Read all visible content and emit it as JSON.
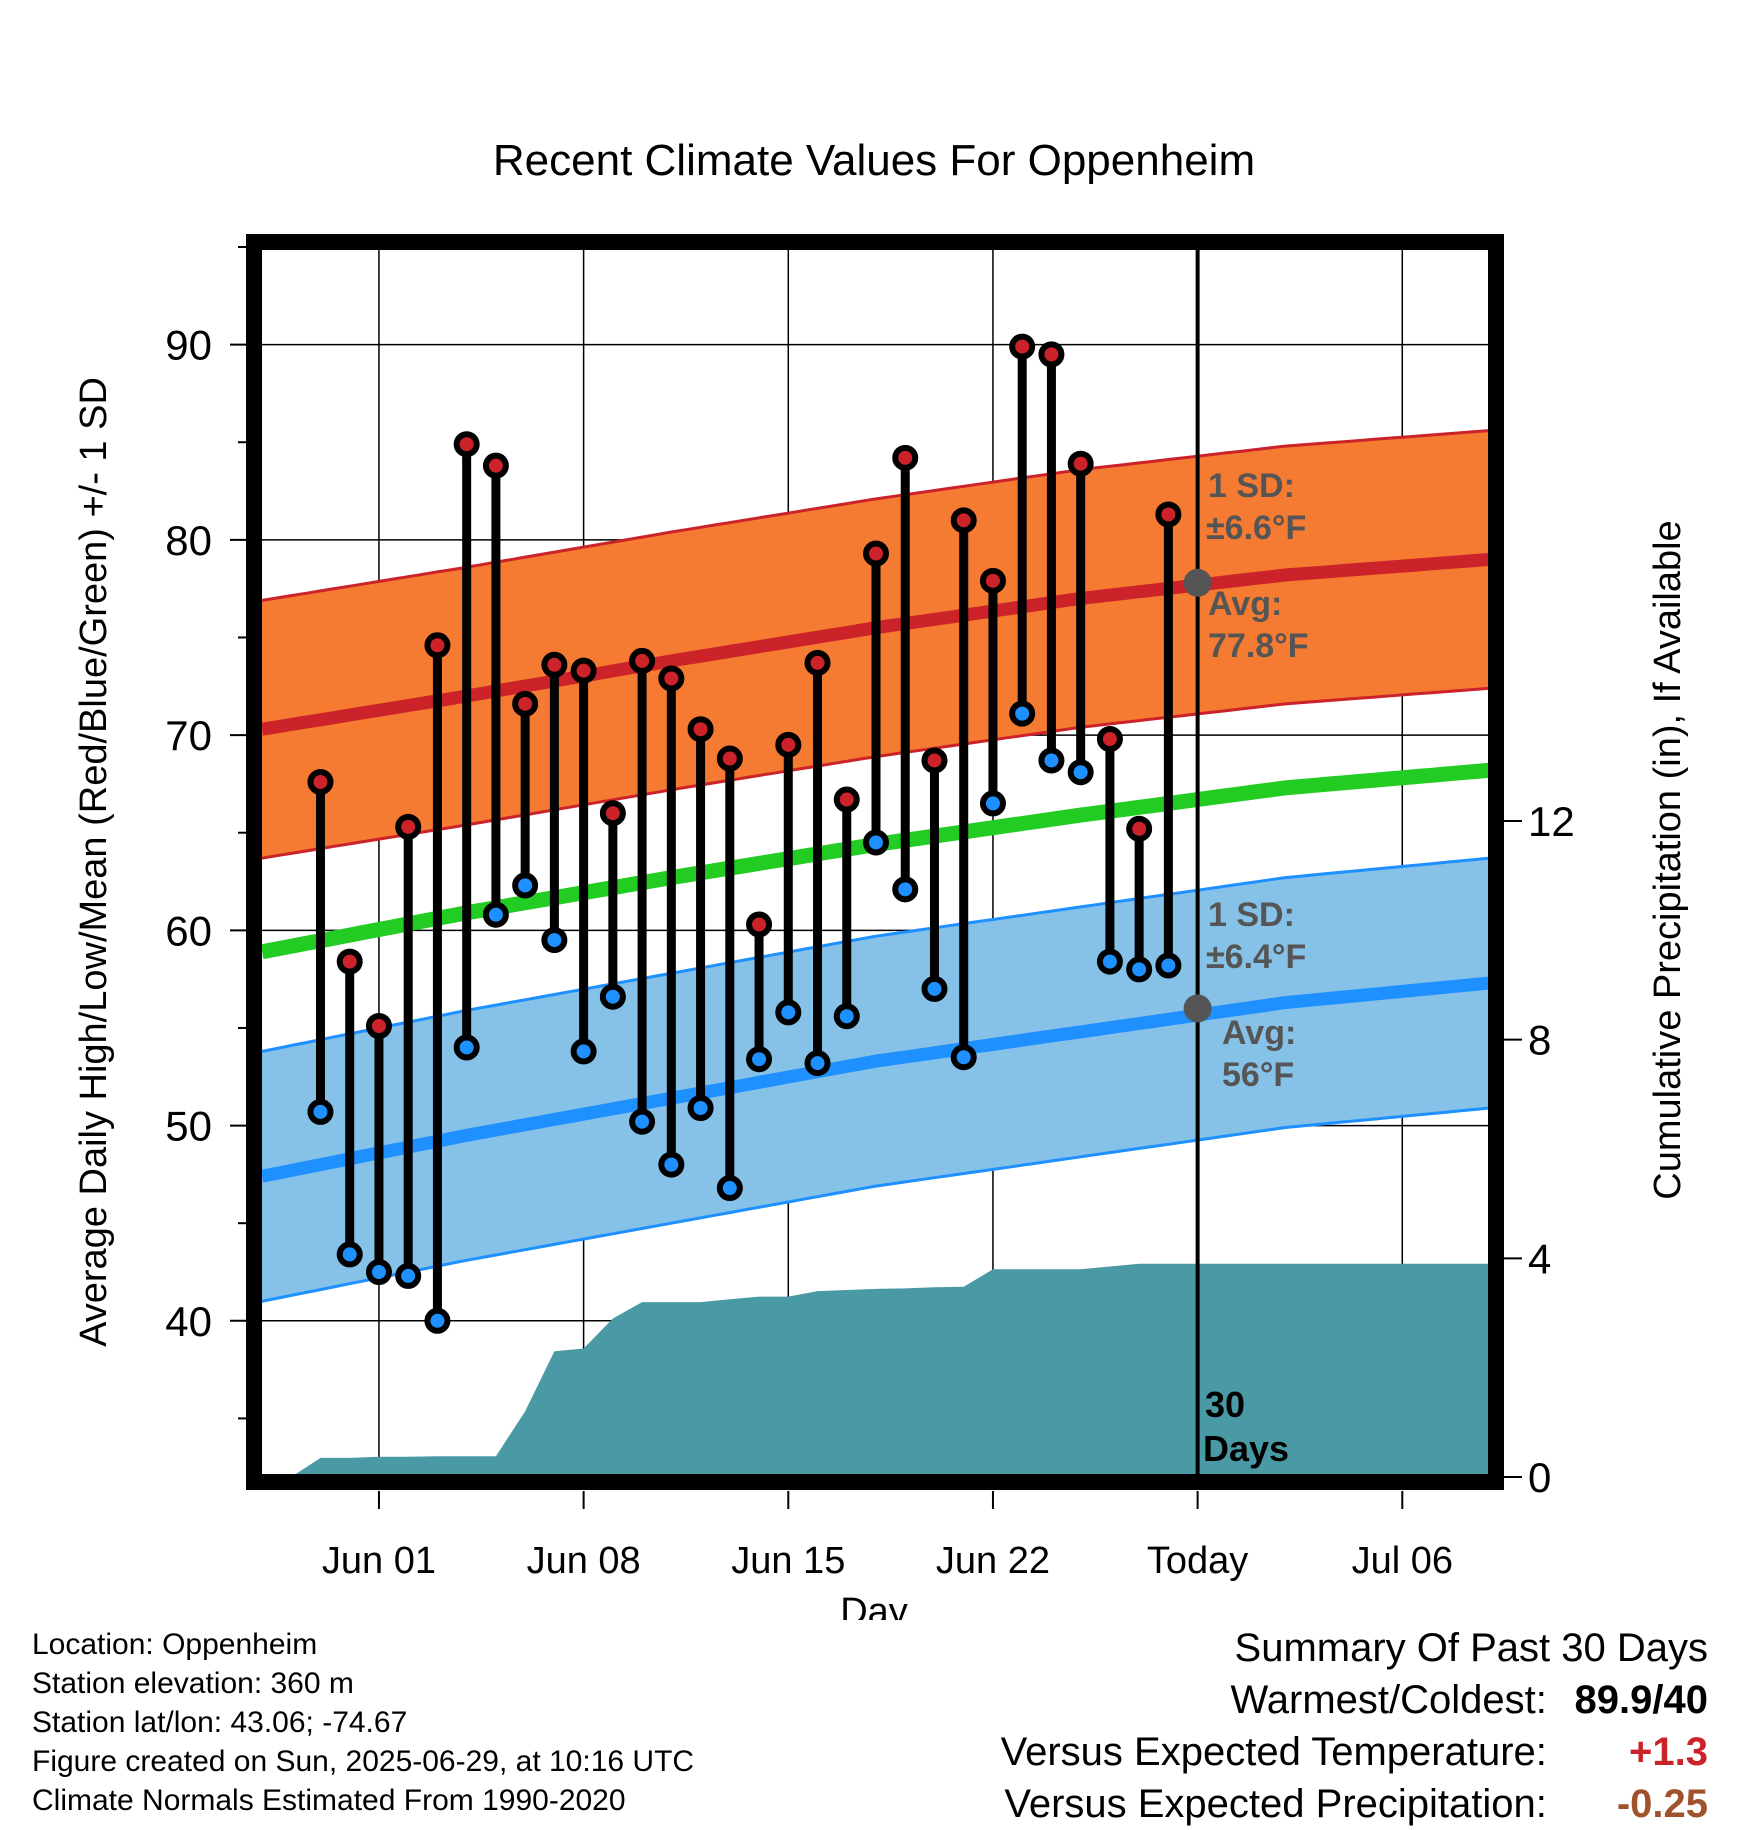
{
  "chart_data": {
    "type": "line",
    "title": "Recent Climate Values For Oppenheim",
    "xlabel": "Day",
    "ylabel": "Average Daily High/Low/Mean (Red/Blue/Green) +/- 1 SD",
    "y2label": "Cumulative Precipitation (in), If Available",
    "xlim": [
      "2025-05-28",
      "2025-07-09"
    ],
    "ylim": [
      32,
      95
    ],
    "y2lim": [
      0,
      22.5
    ],
    "x_ticks": [
      {
        "date": "2025-06-01",
        "label": "Jun 01"
      },
      {
        "date": "2025-06-08",
        "label": "Jun 08"
      },
      {
        "date": "2025-06-15",
        "label": "Jun 15"
      },
      {
        "date": "2025-06-22",
        "label": "Jun 22"
      },
      {
        "date": "2025-06-29",
        "label": "Today"
      },
      {
        "date": "2025-07-06",
        "label": "Jul 06"
      }
    ],
    "y_ticks": [
      40,
      50,
      60,
      70,
      80,
      90
    ],
    "y2_ticks": [
      0,
      4,
      8,
      12
    ],
    "grid": true,
    "today": "2025-06-29",
    "today_label": "30 Days",
    "normals": {
      "dates": [
        "2025-05-28",
        "2025-06-04",
        "2025-06-11",
        "2025-06-18",
        "2025-06-25",
        "2025-07-02",
        "2025-07-09"
      ],
      "avg_high": [
        70.3,
        72.0,
        73.8,
        75.5,
        77.0,
        78.2,
        79.0
      ],
      "high_sd": 6.6,
      "avg_mean": [
        58.9,
        60.9,
        62.7,
        64.4,
        65.9,
        67.3,
        68.2
      ],
      "avg_low": [
        47.4,
        49.5,
        51.4,
        53.3,
        54.8,
        56.3,
        57.3
      ],
      "low_sd": 6.4
    },
    "observed": {
      "dates": [
        "2025-05-30",
        "2025-05-31",
        "2025-06-01",
        "2025-06-02",
        "2025-06-03",
        "2025-06-04",
        "2025-06-05",
        "2025-06-06",
        "2025-06-07",
        "2025-06-08",
        "2025-06-09",
        "2025-06-10",
        "2025-06-11",
        "2025-06-12",
        "2025-06-13",
        "2025-06-14",
        "2025-06-15",
        "2025-06-16",
        "2025-06-17",
        "2025-06-18",
        "2025-06-19",
        "2025-06-20",
        "2025-06-21",
        "2025-06-22",
        "2025-06-23",
        "2025-06-24",
        "2025-06-25",
        "2025-06-26",
        "2025-06-27",
        "2025-06-28"
      ],
      "high": [
        67.6,
        58.4,
        55.1,
        65.3,
        74.6,
        84.9,
        83.8,
        71.6,
        73.6,
        73.3,
        66.0,
        73.8,
        72.9,
        70.3,
        68.8,
        60.3,
        69.5,
        73.7,
        66.7,
        79.3,
        84.2,
        68.7,
        81.0,
        77.9,
        89.9,
        89.5,
        83.9,
        69.8,
        65.2,
        81.3
      ],
      "low": [
        50.7,
        43.4,
        42.5,
        42.3,
        40.0,
        54.0,
        60.8,
        62.3,
        59.5,
        53.8,
        56.6,
        50.2,
        48.0,
        50.9,
        46.8,
        53.4,
        55.8,
        53.2,
        55.6,
        64.5,
        62.1,
        57.0,
        53.5,
        66.5,
        71.1,
        68.7,
        68.1,
        58.4,
        58.0,
        58.2
      ]
    },
    "precip": {
      "dates": [
        "2025-05-29",
        "2025-05-30",
        "2025-05-31",
        "2025-06-01",
        "2025-06-02",
        "2025-06-03",
        "2025-06-04",
        "2025-06-05",
        "2025-06-06",
        "2025-06-07",
        "2025-06-08",
        "2025-06-09",
        "2025-06-10",
        "2025-06-11",
        "2025-06-12",
        "2025-06-13",
        "2025-06-14",
        "2025-06-15",
        "2025-06-16",
        "2025-06-17",
        "2025-06-18",
        "2025-06-19",
        "2025-06-20",
        "2025-06-21",
        "2025-06-22",
        "2025-06-23",
        "2025-06-24",
        "2025-06-25",
        "2025-06-26",
        "2025-06-27",
        "2025-06-28",
        "2025-06-29",
        "2025-07-09"
      ],
      "cumulative": [
        0.0,
        0.35,
        0.35,
        0.37,
        0.37,
        0.38,
        0.38,
        0.38,
        1.2,
        2.3,
        2.35,
        2.9,
        3.2,
        3.2,
        3.2,
        3.25,
        3.3,
        3.3,
        3.4,
        3.42,
        3.44,
        3.45,
        3.47,
        3.48,
        3.8,
        3.8,
        3.8,
        3.8,
        3.85,
        3.9,
        3.9,
        3.9,
        3.9
      ]
    },
    "annotations": {
      "high_sd_label": "1 SD:",
      "high_sd_value": "±6.6°F",
      "high_avg_label": "Avg:",
      "high_avg_value": "77.8°F",
      "today_high_avg": 77.8,
      "low_sd_label": "1 SD:",
      "low_sd_value": "±6.4°F",
      "low_avg_label": "Avg:",
      "low_avg_value": "56°F",
      "today_low_avg": 56.0
    },
    "colors": {
      "high_band": "#f47b31",
      "high_line": "#cc2229",
      "mean_line": "#22cc22",
      "low_band": "#86c1e8",
      "low_line": "#1e90ff",
      "precip": "#4a9aa5",
      "annotation": "#555555",
      "high_dot": "#cc2229",
      "low_dot": "#1e90ff"
    }
  },
  "info": {
    "location": "Location: Oppenheim",
    "elevation": "Station elevation: 360 m",
    "latlon": "Station lat/lon: 43.06; -74.67",
    "created": "Figure created on Sun, 2025-06-29, at 10:16 UTC",
    "normals": "Climate Normals Estimated From 1990-2020"
  },
  "summary": {
    "title": "Summary Of Past 30 Days",
    "warmest_coldest_label": "Warmest/Coldest:",
    "warmest_coldest_value": "89.9/40",
    "temp_label": "Versus Expected Temperature:",
    "temp_value": "+1.3",
    "temp_color": "#cc2229",
    "precip_label": "Versus Expected Precipitation:",
    "precip_value": "-0.25",
    "precip_color": "#a0522d"
  }
}
